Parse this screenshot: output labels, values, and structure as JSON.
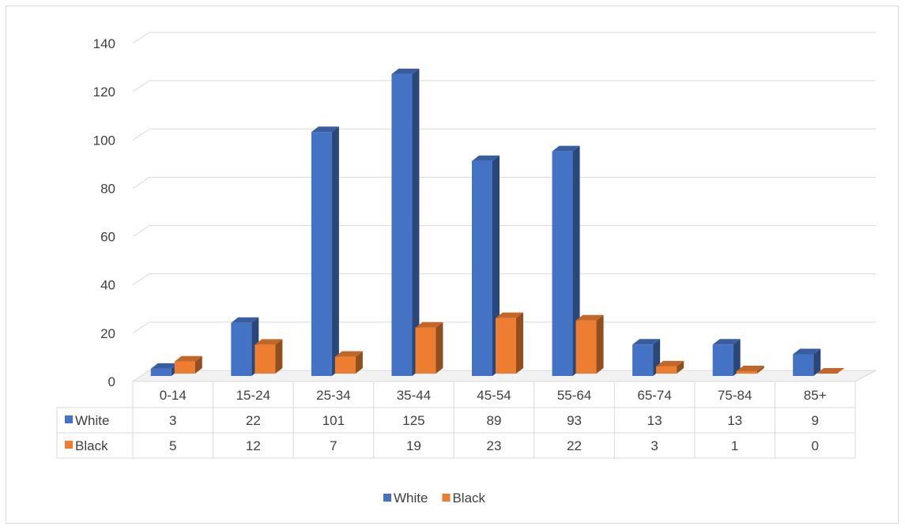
{
  "chart_data": {
    "type": "bar",
    "subtype": "3d-clustered-column-with-data-table",
    "title": "",
    "xlabel": "",
    "ylabel": "",
    "categories": [
      "0-14",
      "15-24",
      "25-34",
      "35-44",
      "45-54",
      "55-64",
      "65-74",
      "75-84",
      "85+"
    ],
    "series": [
      {
        "name": "White",
        "color": "#4472C4",
        "values": [
          3,
          22,
          101,
          125,
          89,
          93,
          13,
          13,
          9
        ]
      },
      {
        "name": "Black",
        "color": "#ED7D31",
        "values": [
          5,
          12,
          7,
          19,
          23,
          22,
          3,
          1,
          0
        ]
      }
    ],
    "ylim": [
      0,
      140
    ],
    "yticks": [
      0,
      20,
      40,
      60,
      80,
      100,
      120,
      140
    ],
    "grid": true,
    "data_table": true,
    "legend": "bottom"
  }
}
